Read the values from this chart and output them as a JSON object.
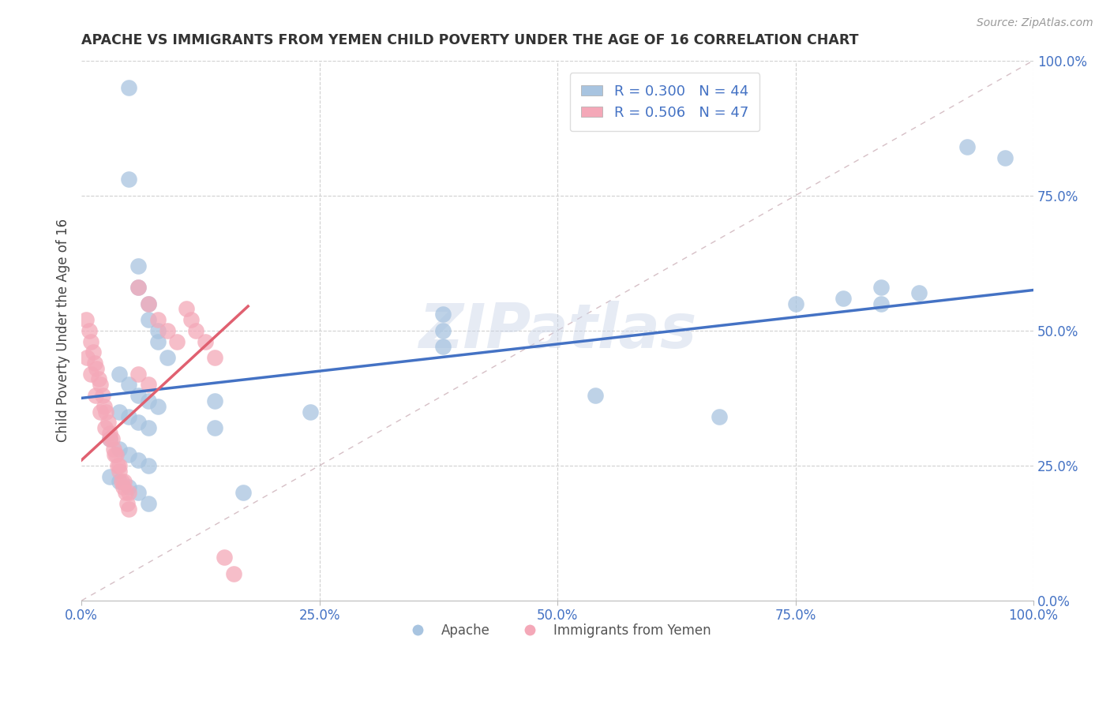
{
  "title": "APACHE VS IMMIGRANTS FROM YEMEN CHILD POVERTY UNDER THE AGE OF 16 CORRELATION CHART",
  "source": "Source: ZipAtlas.com",
  "ylabel": "Child Poverty Under the Age of 16",
  "xlim": [
    0,
    1
  ],
  "ylim": [
    0,
    1
  ],
  "xticks": [
    0.0,
    0.25,
    0.5,
    0.75,
    1.0
  ],
  "yticks": [
    0.0,
    0.25,
    0.5,
    0.75,
    1.0
  ],
  "xtick_labels": [
    "0.0%",
    "25.0%",
    "50.0%",
    "75.0%",
    "100.0%"
  ],
  "ytick_labels": [
    "0.0%",
    "25.0%",
    "50.0%",
    "75.0%",
    "100.0%"
  ],
  "apache_color": "#a8c4e0",
  "yemen_color": "#f4a8b8",
  "apache_line_color": "#4472c4",
  "yemen_line_color": "#e06070",
  "watermark": "ZIPatlas",
  "apache_R": 0.3,
  "apache_N": 44,
  "yemen_R": 0.506,
  "yemen_N": 47,
  "apache_scatter": [
    [
      0.05,
      0.95
    ],
    [
      0.05,
      0.78
    ],
    [
      0.06,
      0.62
    ],
    [
      0.06,
      0.58
    ],
    [
      0.07,
      0.55
    ],
    [
      0.07,
      0.52
    ],
    [
      0.08,
      0.5
    ],
    [
      0.08,
      0.48
    ],
    [
      0.09,
      0.45
    ],
    [
      0.04,
      0.42
    ],
    [
      0.05,
      0.4
    ],
    [
      0.06,
      0.38
    ],
    [
      0.07,
      0.37
    ],
    [
      0.08,
      0.36
    ],
    [
      0.04,
      0.35
    ],
    [
      0.05,
      0.34
    ],
    [
      0.06,
      0.33
    ],
    [
      0.07,
      0.32
    ],
    [
      0.03,
      0.3
    ],
    [
      0.04,
      0.28
    ],
    [
      0.05,
      0.27
    ],
    [
      0.06,
      0.26
    ],
    [
      0.07,
      0.25
    ],
    [
      0.03,
      0.23
    ],
    [
      0.04,
      0.22
    ],
    [
      0.05,
      0.21
    ],
    [
      0.06,
      0.2
    ],
    [
      0.07,
      0.18
    ],
    [
      0.14,
      0.37
    ],
    [
      0.14,
      0.32
    ],
    [
      0.17,
      0.2
    ],
    [
      0.24,
      0.35
    ],
    [
      0.38,
      0.53
    ],
    [
      0.38,
      0.5
    ],
    [
      0.38,
      0.47
    ],
    [
      0.54,
      0.38
    ],
    [
      0.67,
      0.34
    ],
    [
      0.75,
      0.55
    ],
    [
      0.8,
      0.56
    ],
    [
      0.84,
      0.58
    ],
    [
      0.84,
      0.55
    ],
    [
      0.88,
      0.57
    ],
    [
      0.93,
      0.84
    ],
    [
      0.97,
      0.82
    ]
  ],
  "yemen_scatter": [
    [
      0.005,
      0.52
    ],
    [
      0.008,
      0.5
    ],
    [
      0.01,
      0.48
    ],
    [
      0.012,
      0.46
    ],
    [
      0.014,
      0.44
    ],
    [
      0.016,
      0.43
    ],
    [
      0.018,
      0.41
    ],
    [
      0.02,
      0.4
    ],
    [
      0.022,
      0.38
    ],
    [
      0.024,
      0.36
    ],
    [
      0.026,
      0.35
    ],
    [
      0.028,
      0.33
    ],
    [
      0.03,
      0.31
    ],
    [
      0.032,
      0.3
    ],
    [
      0.034,
      0.28
    ],
    [
      0.036,
      0.27
    ],
    [
      0.038,
      0.25
    ],
    [
      0.04,
      0.24
    ],
    [
      0.042,
      0.22
    ],
    [
      0.044,
      0.21
    ],
    [
      0.046,
      0.2
    ],
    [
      0.048,
      0.18
    ],
    [
      0.05,
      0.17
    ],
    [
      0.006,
      0.45
    ],
    [
      0.01,
      0.42
    ],
    [
      0.015,
      0.38
    ],
    [
      0.02,
      0.35
    ],
    [
      0.025,
      0.32
    ],
    [
      0.03,
      0.3
    ],
    [
      0.035,
      0.27
    ],
    [
      0.04,
      0.25
    ],
    [
      0.045,
      0.22
    ],
    [
      0.05,
      0.2
    ],
    [
      0.06,
      0.58
    ],
    [
      0.07,
      0.55
    ],
    [
      0.08,
      0.52
    ],
    [
      0.09,
      0.5
    ],
    [
      0.1,
      0.48
    ],
    [
      0.11,
      0.54
    ],
    [
      0.115,
      0.52
    ],
    [
      0.12,
      0.5
    ],
    [
      0.13,
      0.48
    ],
    [
      0.14,
      0.45
    ],
    [
      0.06,
      0.42
    ],
    [
      0.07,
      0.4
    ],
    [
      0.15,
      0.08
    ],
    [
      0.16,
      0.05
    ]
  ]
}
